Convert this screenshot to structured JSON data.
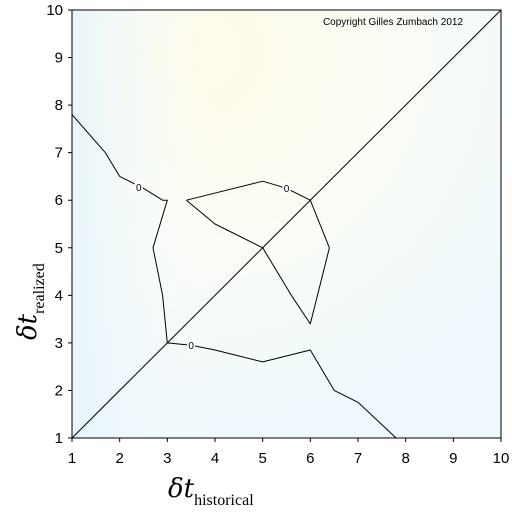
{
  "chart_data": {
    "type": "line",
    "title": "",
    "copyright": "Copyright Gilles Zumbach 2012",
    "xlabel": {
      "symbol": "δt",
      "subscript": "historical"
    },
    "ylabel": {
      "symbol": "δt",
      "subscript": "realized"
    },
    "xlim": [
      1,
      10
    ],
    "ylim": [
      1,
      10
    ],
    "xticks": [
      1,
      2,
      3,
      4,
      5,
      6,
      7,
      8,
      9,
      10
    ],
    "yticks": [
      1,
      2,
      3,
      4,
      5,
      6,
      7,
      8,
      9,
      10
    ],
    "grid": false,
    "series": [
      {
        "x": [
          1,
          10
        ],
        "y": [
          1,
          10
        ]
      },
      {
        "x": [
          1,
          1.7,
          2,
          2.5,
          2.9,
          3,
          2.7,
          2.9,
          3,
          3.5,
          4,
          5,
          6,
          6.5,
          7,
          7.8
        ],
        "y": [
          7.8,
          7,
          6.5,
          6.25,
          6,
          6,
          5,
          4,
          3,
          2.95,
          2.85,
          2.6,
          2.85,
          2,
          1.75,
          1
        ]
      },
      {
        "x": [
          3.4,
          5,
          5.5,
          6,
          6.4,
          6,
          5.6,
          5,
          4,
          3.4
        ],
        "y": [
          6,
          6.4,
          6.25,
          6,
          5,
          3.4,
          4,
          5,
          5.5,
          6
        ]
      }
    ],
    "contour_labels": [
      {
        "text": "0",
        "x": 2.4,
        "y": 6.27
      },
      {
        "text": "0",
        "x": 3.5,
        "y": 2.95
      },
      {
        "text": "0",
        "x": 5.5,
        "y": 6.25
      }
    ]
  }
}
